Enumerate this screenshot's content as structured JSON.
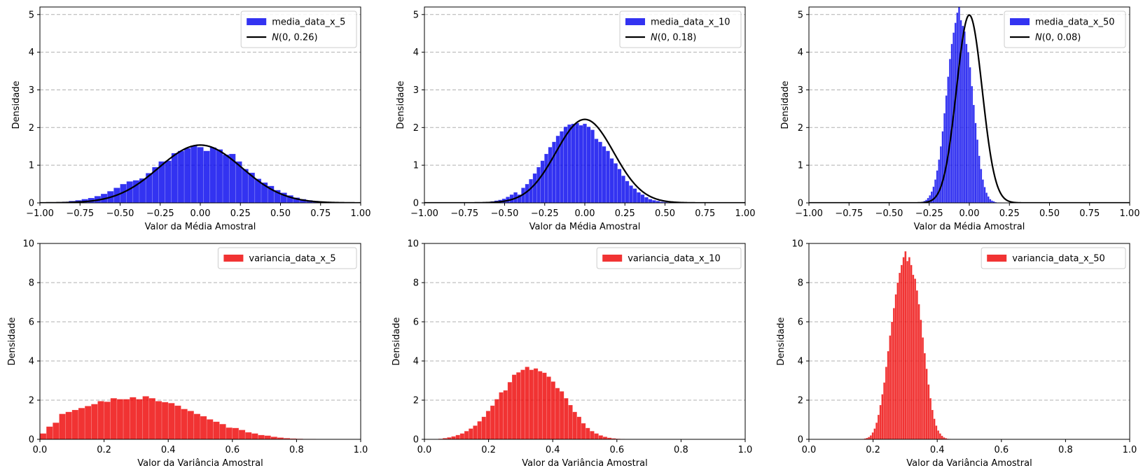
{
  "colors": {
    "media": "#0000ee",
    "variancia": "#ee0000",
    "normal": "#000000"
  },
  "chart_data": [
    {
      "type": "bar",
      "panel": "media-5",
      "title": "",
      "xlabel": "Valor da Média Amostral",
      "ylabel": "Densidade",
      "xlim": [
        -1,
        1
      ],
      "ylim": [
        0,
        5.2
      ],
      "xticks": [
        -1,
        -0.75,
        -0.5,
        -0.25,
        0,
        0.25,
        0.5,
        0.75,
        1
      ],
      "xtick_labels": [
        "−1.00",
        "−0.75",
        "−0.50",
        "−0.25",
        "0.00",
        "0.25",
        "0.50",
        "0.75",
        "1.00"
      ],
      "yticks": [
        0,
        1,
        2,
        3,
        4,
        5
      ],
      "ytick_labels": [
        "0",
        "1",
        "2",
        "3",
        "4",
        "5"
      ],
      "grid": "y",
      "legend_loc": "upper right",
      "series": [
        {
          "name": "media_data_x_5",
          "kind": "hist",
          "bin_start": -1.1,
          "bin_width": 0.04,
          "values": [
            0,
            0,
            0,
            0,
            0.01,
            0.02,
            0.03,
            0.05,
            0.07,
            0.1,
            0.13,
            0.18,
            0.24,
            0.31,
            0.4,
            0.5,
            0.57,
            0.6,
            0.65,
            0.79,
            0.95,
            1.1,
            1.12,
            1.32,
            1.38,
            1.45,
            1.52,
            1.48,
            1.38,
            1.47,
            1.42,
            1.28,
            1.3,
            1.1,
            0.9,
            0.8,
            0.64,
            0.54,
            0.45,
            0.34,
            0.27,
            0.2,
            0.14,
            0.1,
            0.07,
            0.05,
            0.03,
            0.02,
            0.01,
            0.01,
            0,
            0,
            0,
            0,
            0
          ]
        },
        {
          "name": "N(0, 0.26)",
          "legend_math": true,
          "kind": "normal",
          "mean": 0,
          "std": 0.26
        }
      ]
    },
    {
      "type": "bar",
      "panel": "media-10",
      "title": "",
      "xlabel": "Valor da Média Amostral",
      "ylabel": "Densidade",
      "xlim": [
        -1,
        1
      ],
      "ylim": [
        0,
        5.2
      ],
      "xticks": [
        -1,
        -0.75,
        -0.5,
        -0.25,
        0,
        0.25,
        0.5,
        0.75,
        1
      ],
      "xtick_labels": [
        "−1.00",
        "−0.75",
        "−0.50",
        "−0.25",
        "0.00",
        "0.25",
        "0.50",
        "0.75",
        "1.00"
      ],
      "yticks": [
        0,
        1,
        2,
        3,
        4,
        5
      ],
      "ytick_labels": [
        "0",
        "1",
        "2",
        "3",
        "4",
        "5"
      ],
      "grid": "y",
      "legend_loc": "upper right",
      "series": [
        {
          "name": "media_data_x_10",
          "kind": "hist",
          "bin_start": -0.66,
          "bin_width": 0.024,
          "values": [
            0.01,
            0.02,
            0.02,
            0.04,
            0.06,
            0.08,
            0.11,
            0.16,
            0.22,
            0.28,
            0.22,
            0.4,
            0.5,
            0.63,
            0.78,
            0.95,
            1.12,
            1.3,
            1.48,
            1.62,
            1.78,
            1.9,
            2.02,
            2.08,
            2.1,
            2.12,
            2.06,
            2.1,
            2.02,
            1.94,
            1.7,
            1.62,
            1.5,
            1.38,
            1.18,
            1.05,
            0.9,
            0.72,
            0.58,
            0.46,
            0.38,
            0.28,
            0.22,
            0.15,
            0.1,
            0.07,
            0.05,
            0.03,
            0.02,
            0.01,
            0.01,
            0.01,
            0,
            0,
            0
          ]
        },
        {
          "name": "N(0, 0.18)",
          "legend_math": true,
          "kind": "normal",
          "mean": 0,
          "std": 0.18
        }
      ]
    },
    {
      "type": "bar",
      "panel": "media-50",
      "title": "",
      "xlabel": "Valor da Média Amostral",
      "ylabel": "Densidade",
      "xlim": [
        -1,
        1
      ],
      "ylim": [
        0,
        5.2
      ],
      "xticks": [
        -1,
        -0.75,
        -0.5,
        -0.25,
        0,
        0.25,
        0.5,
        0.75,
        1
      ],
      "xtick_labels": [
        "−1.00",
        "−0.75",
        "−0.50",
        "−0.25",
        "0.00",
        "0.25",
        "0.50",
        "0.75",
        "1.00"
      ],
      "yticks": [
        0,
        1,
        2,
        3,
        4,
        5
      ],
      "ytick_labels": [
        "0",
        "1",
        "2",
        "3",
        "4",
        "5"
      ],
      "grid": "y",
      "legend_loc": "upper right",
      "series": [
        {
          "name": "media_data_x_50",
          "kind": "hist",
          "bin_start": -0.32,
          "bin_width": 0.0114,
          "values": [
            0.01,
            0.02,
            0.03,
            0.05,
            0.08,
            0.13,
            0.2,
            0.3,
            0.43,
            0.62,
            0.86,
            1.15,
            1.5,
            1.9,
            2.38,
            2.85,
            3.35,
            3.82,
            4.22,
            4.52,
            4.78,
            5.05,
            5.35,
            4.85,
            4.7,
            4.55,
            4.22,
            4.0,
            3.6,
            3.1,
            2.6,
            2.12,
            1.68,
            1.25,
            0.9,
            0.62,
            0.42,
            0.27,
            0.17,
            0.1,
            0.06,
            0.04,
            0.02,
            0.01,
            0.01,
            0.01
          ]
        },
        {
          "name": "N(0, 0.08)",
          "legend_math": true,
          "kind": "normal",
          "mean": 0,
          "std": 0.08
        }
      ]
    },
    {
      "type": "bar",
      "panel": "variancia-5",
      "title": "",
      "xlabel": "Valor da Variância Amostral",
      "ylabel": "Densidade",
      "xlim": [
        0,
        1
      ],
      "ylim": [
        0,
        10
      ],
      "xticks": [
        0,
        0.2,
        0.4,
        0.6,
        0.8,
        1
      ],
      "xtick_labels": [
        "0.0",
        "0.2",
        "0.4",
        "0.6",
        "0.8",
        "1.0"
      ],
      "yticks": [
        0,
        2,
        4,
        6,
        8,
        10
      ],
      "ytick_labels": [
        "0",
        "2",
        "4",
        "6",
        "8",
        "10"
      ],
      "grid": "y",
      "legend_loc": "upper right",
      "series": [
        {
          "name": "variancia_data_x_5",
          "kind": "hist",
          "bin_start": 0,
          "bin_width": 0.02,
          "values": [
            0.3,
            0.65,
            0.85,
            1.3,
            1.4,
            1.5,
            1.6,
            1.7,
            1.8,
            1.95,
            1.92,
            2.1,
            2.05,
            2.05,
            2.15,
            2.05,
            2.2,
            2.1,
            1.95,
            1.9,
            1.85,
            1.72,
            1.55,
            1.45,
            1.3,
            1.18,
            1.02,
            0.9,
            0.78,
            0.6,
            0.58,
            0.48,
            0.36,
            0.3,
            0.22,
            0.19,
            0.13,
            0.09,
            0.06,
            0.04,
            0.03,
            0.02,
            0.02,
            0.01,
            0.01,
            0.01,
            0,
            0,
            0.01
          ]
        }
      ]
    },
    {
      "type": "bar",
      "panel": "variancia-10",
      "title": "",
      "xlabel": "Valor da Variância Amostral",
      "ylabel": "Densidade",
      "xlim": [
        0,
        1
      ],
      "ylim": [
        0,
        10
      ],
      "xticks": [
        0,
        0.2,
        0.4,
        0.6,
        0.8,
        1
      ],
      "xtick_labels": [
        "0.0",
        "0.2",
        "0.4",
        "0.6",
        "0.8",
        "1.0"
      ],
      "yticks": [
        0,
        2,
        4,
        6,
        8,
        10
      ],
      "ytick_labels": [
        "0",
        "2",
        "4",
        "6",
        "8",
        "10"
      ],
      "grid": "y",
      "legend_loc": "upper right",
      "series": [
        {
          "name": "variancia_data_x_10",
          "kind": "hist",
          "bin_start": 0.03,
          "bin_width": 0.0135,
          "values": [
            0.01,
            0.03,
            0.06,
            0.1,
            0.15,
            0.22,
            0.3,
            0.42,
            0.55,
            0.7,
            0.92,
            1.15,
            1.45,
            1.72,
            2.05,
            2.4,
            2.5,
            2.92,
            3.3,
            3.42,
            3.55,
            3.7,
            3.55,
            3.62,
            3.48,
            3.4,
            3.2,
            2.95,
            2.62,
            2.45,
            2.1,
            1.75,
            1.4,
            1.15,
            0.82,
            0.58,
            0.42,
            0.3,
            0.2,
            0.13,
            0.08,
            0.05,
            0.03,
            0.02,
            0.01,
            0.01,
            0.01,
            0
          ]
        }
      ]
    },
    {
      "type": "bar",
      "panel": "variancia-50",
      "title": "",
      "xlabel": "Valor da Variância Amostral",
      "ylabel": "Densidade",
      "xlim": [
        0,
        1
      ],
      "ylim": [
        0,
        10
      ],
      "xticks": [
        0,
        0.2,
        0.4,
        0.6,
        0.8,
        1
      ],
      "xtick_labels": [
        "0.0",
        "0.2",
        "0.4",
        "0.6",
        "0.8",
        "1.0"
      ],
      "yticks": [
        0,
        2,
        4,
        6,
        8,
        10
      ],
      "ytick_labels": [
        "0",
        "2",
        "4",
        "6",
        "8",
        "10"
      ],
      "grid": "y",
      "legend_loc": "upper right",
      "series": [
        {
          "name": "variancia_data_x_50",
          "kind": "hist",
          "bin_start": 0.16,
          "bin_width": 0.006,
          "values": [
            0.01,
            0.02,
            0.04,
            0.07,
            0.12,
            0.2,
            0.35,
            0.55,
            0.85,
            1.25,
            1.75,
            2.3,
            2.9,
            3.7,
            4.5,
            5.3,
            6.0,
            6.7,
            7.4,
            8.0,
            8.5,
            8.9,
            9.3,
            9.6,
            9.1,
            9.3,
            8.9,
            8.4,
            8.2,
            7.6,
            6.9,
            6.1,
            5.2,
            4.4,
            3.6,
            2.8,
            2.1,
            1.5,
            1.05,
            0.7,
            0.45,
            0.3,
            0.18,
            0.1,
            0.06,
            0.03,
            0.02,
            0.01,
            0.01
          ]
        }
      ]
    }
  ]
}
